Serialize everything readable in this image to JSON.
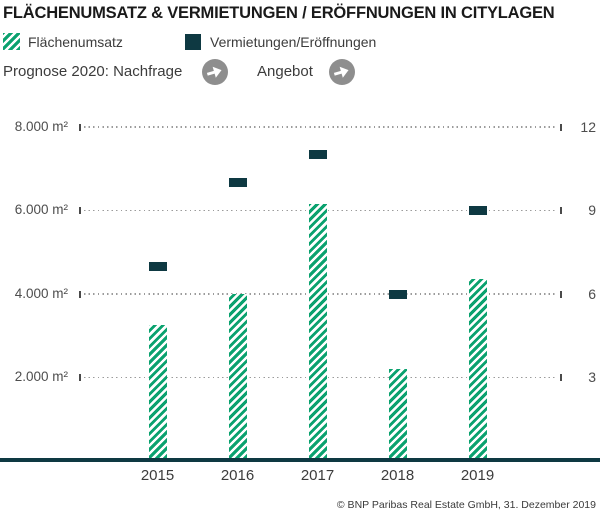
{
  "prognose": {
    "label": "Prognose 2020: Nachfrage",
    "angebot_label": "Angebot"
  },
  "icons": {
    "nachfrage_trend": "arrow-right-icon",
    "angebot_trend": "arrow-right-icon"
  },
  "footer": "© BNP Paribas Real Estate GmbH, 31. Dezember 2019",
  "colors": {
    "green": "#0ba26f",
    "dark_teal": "#0e3942",
    "grid_dot": "#9b9b9b",
    "axis_text": "#4d4d4d",
    "body_text": "#3c3c3c",
    "arrow_gray": "#8e8e8e"
  },
  "chart_data": {
    "type": "bar",
    "title": "FLÄCHENUMSATZ & VERMIETUNGEN / ERÖFFNUNGEN IN CITYLAGEN",
    "categories": [
      "2015",
      "2016",
      "2017",
      "2018",
      "2019"
    ],
    "series": [
      {
        "name": "Flächenumsatz",
        "type": "bar",
        "axis": "left",
        "values": [
          3250,
          4000,
          6150,
          2200,
          4350
        ]
      },
      {
        "name": "Vermietungen/Eröffnungen",
        "type": "dash",
        "axis": "right",
        "values": [
          7,
          10,
          11,
          6,
          9
        ]
      }
    ],
    "left_axis": {
      "min": 0,
      "max": 8000,
      "ticks": [
        {
          "value": 8000,
          "label": "8.000 m²"
        },
        {
          "value": 6000,
          "label": "6.000 m²"
        },
        {
          "value": 4000,
          "label": "4.000 m²"
        },
        {
          "value": 2000,
          "label": "2.000 m²"
        }
      ]
    },
    "right_axis": {
      "min": 0,
      "max": 12,
      "ticks": [
        {
          "value": 12,
          "label": "12"
        },
        {
          "value": 9,
          "label": "9"
        },
        {
          "value": 6,
          "label": "6"
        },
        {
          "value": 3,
          "label": "3"
        }
      ]
    },
    "grid": "dotted-horizontal",
    "legend_position": "top-left"
  }
}
